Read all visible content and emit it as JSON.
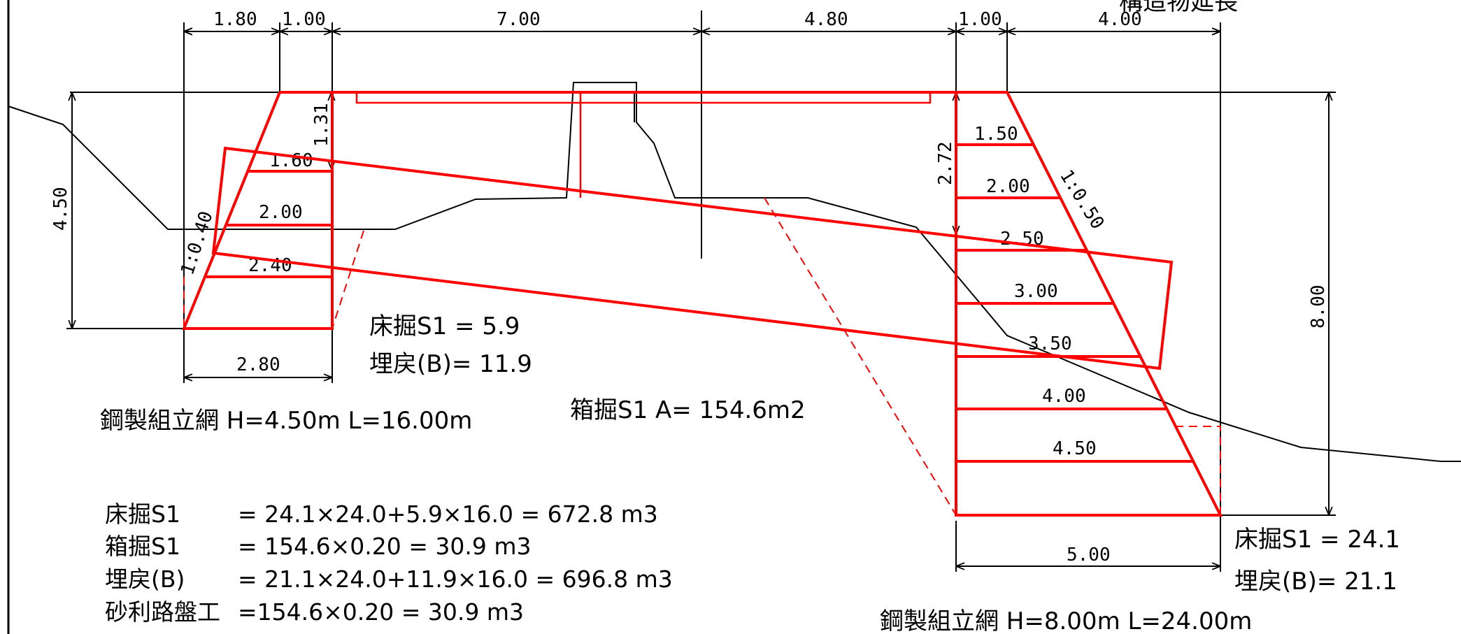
{
  "title_partial": "構造物延長",
  "dimensions": {
    "top": [
      "1.80",
      "1.00",
      "7.00",
      "4.80",
      "1.00",
      "4.00"
    ],
    "left_height": "4.50",
    "right_height": "8.00",
    "left_depth": "1.31",
    "right_depth": "2.72",
    "left_bottom": "2.80",
    "right_bottom": "5.00",
    "left_slope": "1:0.40",
    "right_slope": "1:0.50"
  },
  "left_sheeting_widths": [
    "1.60",
    "2.00",
    "2.40"
  ],
  "right_sheeting_widths": [
    "1.50",
    "2.00",
    "2.50",
    "3.00",
    "3.50",
    "4.00",
    "4.50"
  ],
  "left_quantities": [
    "床掘S1 =  5.9",
    "埋戻(B)= 11.9"
  ],
  "right_quantities": [
    "床掘S1 =  24.1",
    "埋戻(B)=  21.1"
  ],
  "left_sheet_pile": "鋼製組立網 H=4.50m L=16.00m",
  "right_sheet_pile": "鋼製組立網 H=8.00m L=24.00m",
  "box_excavation": "箱掘S1   A= 154.6m2",
  "calculations": [
    {
      "name": "床掘S1",
      "formula": "=  24.1×24.0+5.9×16.0 = 672.8 m3"
    },
    {
      "name": "箱掘S1",
      "formula": "= 154.6×0.20 = 30.9 m3"
    },
    {
      "name": "埋戻(B)",
      "formula": "=  21.1×24.0+11.9×16.0 = 696.8 m3"
    },
    {
      "name": "砂利路盤工",
      "formula": "=154.6×0.20 = 30.9 m3"
    }
  ]
}
